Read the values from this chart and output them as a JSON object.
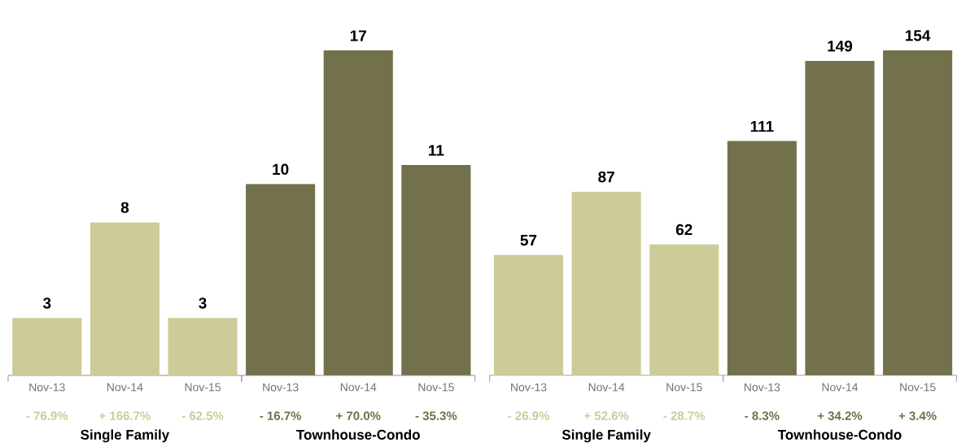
{
  "chart_data": [
    {
      "type": "bar",
      "categories": [
        "Nov-13",
        "Nov-14",
        "Nov-15",
        "Nov-13",
        "Nov-14",
        "Nov-15"
      ],
      "data_labels": true,
      "series": [
        {
          "color": "#cdcb98",
          "values": [
            3,
            8,
            3,
            null,
            null,
            null
          ]
        },
        {
          "color": "#72714b",
          "values": [
            null,
            null,
            null,
            10,
            17,
            11
          ]
        }
      ],
      "annotations": [
        "- 76.9%",
        "+ 166.7%",
        "- 62.5%",
        "- 16.7%",
        "+ 70.0%",
        "- 35.3%",
        "Single Family",
        "Townhouse-Condo"
      ]
    },
    {
      "type": "bar",
      "categories": [
        "Nov-13",
        "Nov-14",
        "Nov-15",
        "Nov-13",
        "Nov-14",
        "Nov-15"
      ],
      "data_labels": true,
      "series": [
        {
          "color": "#cdcb98",
          "values": [
            57,
            87,
            62,
            null,
            null,
            null
          ]
        },
        {
          "color": "#72714b",
          "values": [
            null,
            null,
            null,
            111,
            149,
            154
          ]
        }
      ],
      "annotations": [
        "- 26.9%",
        "+ 52.6%",
        "- 28.7%",
        "- 8.3%",
        "+ 34.2%",
        "+ 3.4%",
        "Single Family",
        "Townhouse-Condo"
      ]
    }
  ]
}
